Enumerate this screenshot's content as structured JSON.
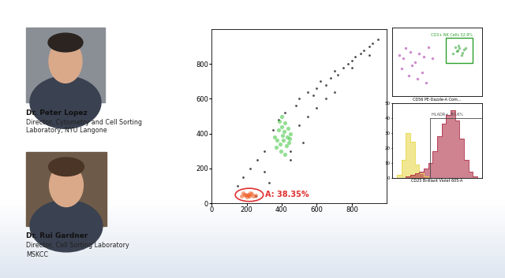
{
  "people": [
    {
      "name": "Dr. Peter Lopez",
      "title_lines": [
        "Director, Cytometry and Cell Sorting",
        "Laboratory, NYU Langone"
      ]
    },
    {
      "name": "Dr. Rui Gardner",
      "title_lines": [
        "Director, Cell Sorting Laboratory",
        "MSKCC"
      ]
    }
  ],
  "chart_data": [
    {
      "type": "scatter",
      "xlim": [
        0,
        1000
      ],
      "ylim": [
        0,
        1000
      ],
      "xticks": [
        0,
        200,
        400,
        600,
        800
      ],
      "yticks": [
        0,
        200,
        400,
        600,
        800
      ],
      "grid": false,
      "groups": [
        {
          "color": "#1a1a1a",
          "x": [
            150,
            180,
            220,
            260,
            300,
            330,
            350,
            380,
            420,
            450,
            480,
            500,
            520,
            550,
            580,
            600,
            620,
            650,
            680,
            700,
            720,
            750,
            780,
            800,
            820,
            850,
            870,
            900,
            920,
            950,
            300,
            500,
            600,
            700,
            800,
            650,
            450,
            250,
            550,
            900
          ],
          "y": [
            100,
            150,
            200,
            250,
            300,
            120,
            420,
            480,
            520,
            300,
            560,
            600,
            350,
            640,
            620,
            660,
            700,
            680,
            720,
            760,
            740,
            780,
            800,
            820,
            840,
            860,
            880,
            900,
            920,
            940,
            180,
            450,
            550,
            640,
            780,
            600,
            250,
            40,
            500,
            850
          ]
        },
        {
          "color": "#3cc43c",
          "x": [
            370,
            390,
            410,
            430,
            450,
            380,
            400,
            420,
            440,
            360,
            395,
            425,
            405,
            415,
            385,
            435,
            375,
            445,
            400,
            420
          ],
          "y": [
            320,
            340,
            360,
            380,
            400,
            420,
            440,
            460,
            350,
            380,
            300,
            330,
            390,
            410,
            470,
            430,
            360,
            370,
            500,
            280
          ]
        },
        {
          "color": "#f05a1e",
          "x": [
            170,
            190,
            210,
            230,
            250,
            200,
            220,
            180,
            240,
            205,
            215,
            195
          ],
          "y": [
            40,
            50,
            45,
            55,
            45,
            35,
            60,
            60,
            40,
            50,
            40,
            45
          ]
        }
      ],
      "gate": {
        "x": 215,
        "y": 48,
        "width": 160,
        "height": 75,
        "color": "#e03030",
        "label": "A: 38.35%"
      }
    },
    {
      "type": "scatter",
      "xlim": [
        0,
        100
      ],
      "ylim": [
        0,
        100
      ],
      "tick_labels": false,
      "x_label": "CD56 PE-Dazzle-A Com...",
      "groups": [
        {
          "color": "#c070c0",
          "x": [
            8,
            12,
            15,
            20,
            25,
            30,
            35,
            40,
            18,
            28,
            10,
            22,
            33,
            38,
            45
          ],
          "y": [
            60,
            55,
            70,
            65,
            50,
            62,
            58,
            72,
            30,
            25,
            40,
            45,
            35,
            20,
            55
          ]
        },
        {
          "color": "#2ca02c",
          "x": [
            68,
            72,
            75,
            78,
            80,
            74,
            70,
            77,
            82,
            73
          ],
          "y": [
            62,
            66,
            70,
            64,
            68,
            74,
            72,
            60,
            70,
            67
          ]
        }
      ],
      "gate": {
        "x0": 60,
        "y0": 48,
        "x1": 90,
        "y1": 85,
        "color": "#2ca02c",
        "label": "CD3+ NK Cells 52.9%"
      }
    },
    {
      "type": "histogram",
      "xlim": [
        0,
        100
      ],
      "ylim": [
        0,
        50
      ],
      "yticks": [
        0,
        10,
        20,
        30,
        40,
        50
      ],
      "tick_labels": "y",
      "x_label": "CD25 Brilliant Violet 605-A",
      "bins": [
        0,
        5,
        10,
        15,
        20,
        25,
        30,
        35,
        40,
        45,
        50,
        55,
        60,
        65,
        70,
        75,
        80,
        85,
        90,
        95,
        100
      ],
      "series": [
        {
          "color": "#e8d84a",
          "counts": [
            0,
            2,
            12,
            30,
            24,
            9,
            3,
            1,
            0,
            0,
            0,
            0,
            0,
            0,
            0,
            0,
            0,
            0,
            0,
            0
          ]
        },
        {
          "color": "#b03048",
          "counts": [
            0,
            0,
            0,
            1,
            2,
            3,
            4,
            6,
            10,
            18,
            28,
            36,
            42,
            45,
            38,
            26,
            12,
            4,
            1,
            0
          ]
        }
      ],
      "gate": {
        "x0": 42,
        "x1": 100,
        "y": 40,
        "color": "#444444",
        "label": "HLADR+: 80.6%"
      }
    }
  ]
}
